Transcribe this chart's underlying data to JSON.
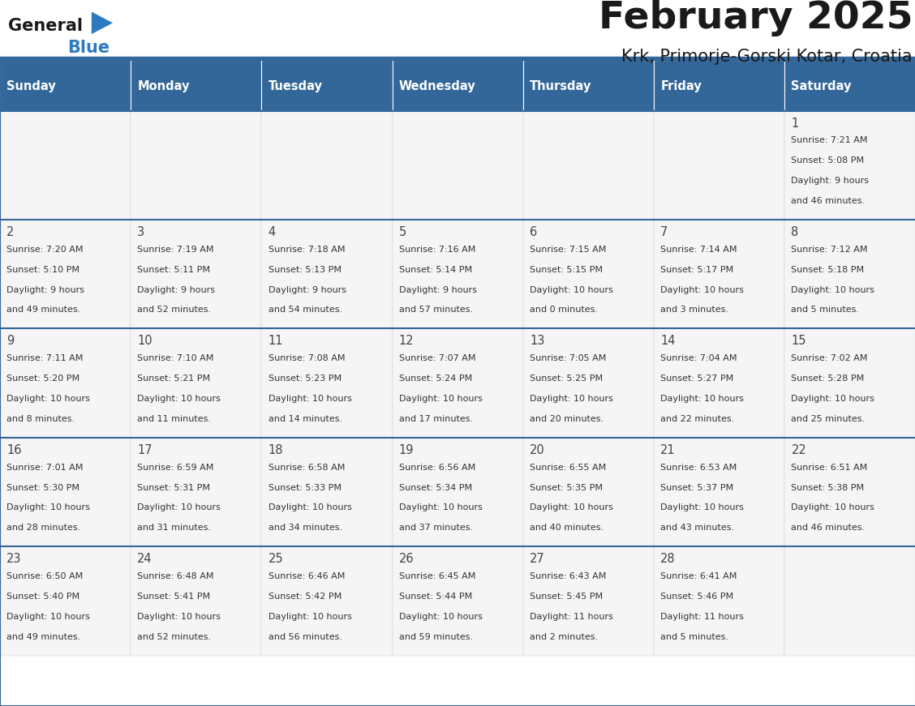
{
  "title": "February 2025",
  "subtitle": "Krk, Primorje-Gorski Kotar, Croatia",
  "days_of_week": [
    "Sunday",
    "Monday",
    "Tuesday",
    "Wednesday",
    "Thursday",
    "Friday",
    "Saturday"
  ],
  "header_bg": "#336699",
  "header_text": "#ffffff",
  "cell_bg": "#f5f5f5",
  "cell_text": "#333333",
  "border_color": "#336699",
  "title_color": "#1a1a1a",
  "subtitle_color": "#1a1a1a",
  "logo_text_color": "#1a1a1a",
  "logo_blue_color": "#2e7abf",
  "calendar": [
    [
      null,
      null,
      null,
      null,
      null,
      null,
      1
    ],
    [
      2,
      3,
      4,
      5,
      6,
      7,
      8
    ],
    [
      9,
      10,
      11,
      12,
      13,
      14,
      15
    ],
    [
      16,
      17,
      18,
      19,
      20,
      21,
      22
    ],
    [
      23,
      24,
      25,
      26,
      27,
      28,
      null
    ]
  ],
  "sunrise": {
    "1": "7:21 AM",
    "2": "7:20 AM",
    "3": "7:19 AM",
    "4": "7:18 AM",
    "5": "7:16 AM",
    "6": "7:15 AM",
    "7": "7:14 AM",
    "8": "7:12 AM",
    "9": "7:11 AM",
    "10": "7:10 AM",
    "11": "7:08 AM",
    "12": "7:07 AM",
    "13": "7:05 AM",
    "14": "7:04 AM",
    "15": "7:02 AM",
    "16": "7:01 AM",
    "17": "6:59 AM",
    "18": "6:58 AM",
    "19": "6:56 AM",
    "20": "6:55 AM",
    "21": "6:53 AM",
    "22": "6:51 AM",
    "23": "6:50 AM",
    "24": "6:48 AM",
    "25": "6:46 AM",
    "26": "6:45 AM",
    "27": "6:43 AM",
    "28": "6:41 AM"
  },
  "sunset": {
    "1": "5:08 PM",
    "2": "5:10 PM",
    "3": "5:11 PM",
    "4": "5:13 PM",
    "5": "5:14 PM",
    "6": "5:15 PM",
    "7": "5:17 PM",
    "8": "5:18 PM",
    "9": "5:20 PM",
    "10": "5:21 PM",
    "11": "5:23 PM",
    "12": "5:24 PM",
    "13": "5:25 PM",
    "14": "5:27 PM",
    "15": "5:28 PM",
    "16": "5:30 PM",
    "17": "5:31 PM",
    "18": "5:33 PM",
    "19": "5:34 PM",
    "20": "5:35 PM",
    "21": "5:37 PM",
    "22": "5:38 PM",
    "23": "5:40 PM",
    "24": "5:41 PM",
    "25": "5:42 PM",
    "26": "5:44 PM",
    "27": "5:45 PM",
    "28": "5:46 PM"
  },
  "daylight": {
    "1": [
      "9 hours",
      "and 46 minutes."
    ],
    "2": [
      "9 hours",
      "and 49 minutes."
    ],
    "3": [
      "9 hours",
      "and 52 minutes."
    ],
    "4": [
      "9 hours",
      "and 54 minutes."
    ],
    "5": [
      "9 hours",
      "and 57 minutes."
    ],
    "6": [
      "10 hours",
      "and 0 minutes."
    ],
    "7": [
      "10 hours",
      "and 3 minutes."
    ],
    "8": [
      "10 hours",
      "and 5 minutes."
    ],
    "9": [
      "10 hours",
      "and 8 minutes."
    ],
    "10": [
      "10 hours",
      "and 11 minutes."
    ],
    "11": [
      "10 hours",
      "and 14 minutes."
    ],
    "12": [
      "10 hours",
      "and 17 minutes."
    ],
    "13": [
      "10 hours",
      "and 20 minutes."
    ],
    "14": [
      "10 hours",
      "and 22 minutes."
    ],
    "15": [
      "10 hours",
      "and 25 minutes."
    ],
    "16": [
      "10 hours",
      "and 28 minutes."
    ],
    "17": [
      "10 hours",
      "and 31 minutes."
    ],
    "18": [
      "10 hours",
      "and 34 minutes."
    ],
    "19": [
      "10 hours",
      "and 37 minutes."
    ],
    "20": [
      "10 hours",
      "and 40 minutes."
    ],
    "21": [
      "10 hours",
      "and 43 minutes."
    ],
    "22": [
      "10 hours",
      "and 46 minutes."
    ],
    "23": [
      "10 hours",
      "and 49 minutes."
    ],
    "24": [
      "10 hours",
      "and 52 minutes."
    ],
    "25": [
      "10 hours",
      "and 56 minutes."
    ],
    "26": [
      "10 hours",
      "and 59 minutes."
    ],
    "27": [
      "11 hours",
      "and 2 minutes."
    ],
    "28": [
      "11 hours",
      "and 5 minutes."
    ]
  }
}
